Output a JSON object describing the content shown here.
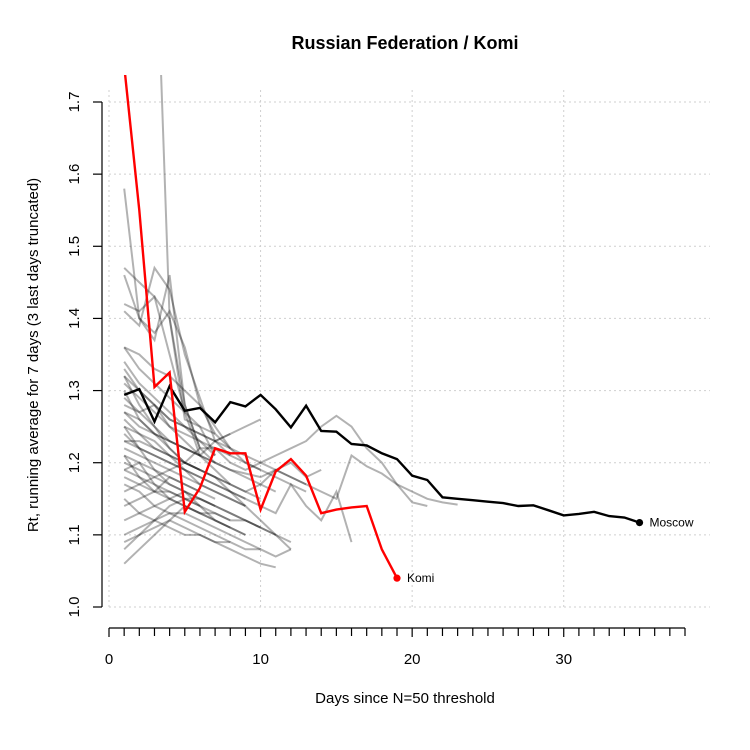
{
  "chart_data": {
    "type": "line",
    "title": "Russian Federation / Komi",
    "xlabel": "Days since N=50 threshold",
    "ylabel": "Rt, running average for 7 days (3 last days truncated)",
    "xlim": [
      0,
      38
    ],
    "ylim": [
      1.0,
      1.7
    ],
    "x_ticks": [
      "0",
      "10",
      "20",
      "30"
    ],
    "y_ticks": [
      "1.0",
      "1.1",
      "1.2",
      "1.3",
      "1.4",
      "1.5",
      "1.6",
      "1.7"
    ],
    "grid": true,
    "colors": {
      "highlight": "#ff0000",
      "reference": "#000000",
      "background": "#808080"
    },
    "highlight": {
      "name": "Komi",
      "x": [
        1,
        2,
        3,
        4,
        5,
        6,
        7,
        8,
        9,
        10,
        11,
        12,
        13,
        14,
        15,
        16,
        17,
        18,
        19
      ],
      "y": [
        1.75,
        1.55,
        1.305,
        1.325,
        1.132,
        1.165,
        1.22,
        1.213,
        1.213,
        1.135,
        1.188,
        1.205,
        1.182,
        1.13,
        1.135,
        1.138,
        1.14,
        1.08,
        1.04
      ]
    },
    "reference": {
      "name": "Moscow",
      "x": [
        1,
        2,
        3,
        4,
        5,
        6,
        7,
        8,
        9,
        10,
        11,
        12,
        13,
        14,
        15,
        16,
        17,
        18,
        19,
        20,
        21,
        22,
        23,
        24,
        25,
        26,
        27,
        28,
        29,
        30,
        31,
        32,
        33,
        34,
        35
      ],
      "y": [
        1.294,
        1.302,
        1.257,
        1.306,
        1.272,
        1.276,
        1.256,
        1.284,
        1.278,
        1.294,
        1.274,
        1.249,
        1.279,
        1.244,
        1.243,
        1.226,
        1.224,
        1.213,
        1.205,
        1.182,
        1.176,
        1.152,
        1.15,
        1.148,
        1.146,
        1.144,
        1.14,
        1.141,
        1.134,
        1.127,
        1.129,
        1.132,
        1.126,
        1.124,
        1.117
      ]
    },
    "series": [
      {
        "x": [
          1,
          2,
          3,
          4,
          5,
          6,
          7,
          8,
          9,
          10,
          11,
          12,
          13,
          14,
          15,
          16,
          17,
          18,
          19,
          20,
          21
        ],
        "y": [
          1.29,
          1.27,
          1.28,
          1.25,
          1.24,
          1.23,
          1.22,
          1.2,
          1.19,
          1.2,
          1.21,
          1.22,
          1.23,
          1.25,
          1.265,
          1.25,
          1.22,
          1.2,
          1.17,
          1.145,
          1.14
        ]
      },
      {
        "x": [
          1,
          2,
          3,
          4,
          5,
          6,
          7,
          8,
          9,
          10,
          11,
          12,
          13,
          14,
          15,
          16,
          17,
          18,
          19,
          20,
          21,
          22,
          23
        ],
        "y": [
          1.27,
          1.25,
          1.24,
          1.23,
          1.22,
          1.21,
          1.2,
          1.19,
          1.185,
          1.18,
          1.19,
          1.18,
          1.17,
          1.16,
          1.15,
          1.21,
          1.195,
          1.185,
          1.17,
          1.16,
          1.15,
          1.145,
          1.142
        ]
      },
      {
        "x": [
          1,
          2,
          3,
          4,
          5,
          6,
          7,
          8,
          9,
          10,
          11,
          12,
          13,
          14,
          15,
          16
        ],
        "y": [
          1.23,
          1.22,
          1.21,
          1.2,
          1.19,
          1.18,
          1.17,
          1.16,
          1.15,
          1.14,
          1.13,
          1.17,
          1.14,
          1.12,
          1.16,
          1.09
        ]
      },
      {
        "x": [
          1,
          2,
          3,
          4,
          5,
          6,
          7,
          8,
          9,
          10
        ],
        "y": [
          1.58,
          1.4,
          1.38,
          1.41,
          1.36,
          1.28,
          1.25,
          1.22,
          1.2,
          1.19
        ]
      },
      {
        "x": [
          1,
          2,
          3,
          4,
          5,
          6,
          7
        ],
        "y": [
          1.47,
          1.45,
          1.43,
          1.4,
          1.26,
          1.25,
          1.21
        ]
      },
      {
        "x": [
          1,
          2,
          3,
          4,
          5,
          6
        ],
        "y": [
          1.42,
          1.41,
          1.43,
          1.35,
          1.27,
          1.21
        ]
      },
      {
        "x": [
          1,
          2,
          3,
          4,
          5,
          6,
          7,
          8
        ],
        "y": [
          1.41,
          1.39,
          1.47,
          1.44,
          1.35,
          1.29,
          1.23,
          1.21
        ]
      },
      {
        "x": [
          1,
          2,
          3,
          4,
          5,
          6,
          7
        ],
        "y": [
          1.46,
          1.4,
          1.37,
          1.46,
          1.28,
          1.22,
          1.2
        ]
      },
      {
        "x": [
          3,
          4,
          5,
          6
        ],
        "y": [
          2.0,
          1.4,
          1.28,
          1.22
        ]
      },
      {
        "x": [
          1,
          2,
          3,
          4,
          5,
          6,
          7,
          8
        ],
        "y": [
          1.36,
          1.35,
          1.33,
          1.32,
          1.3,
          1.28,
          1.24,
          1.22
        ]
      },
      {
        "x": [
          1,
          2,
          3,
          4,
          5,
          6,
          7,
          8,
          9,
          10
        ],
        "y": [
          1.27,
          1.26,
          1.24,
          1.23,
          1.22,
          1.21,
          1.23,
          1.24,
          1.25,
          1.26
        ]
      },
      {
        "x": [
          1,
          2,
          3,
          4,
          5,
          6,
          7,
          8
        ],
        "y": [
          1.33,
          1.3,
          1.28,
          1.26,
          1.25,
          1.24,
          1.23,
          1.24
        ]
      },
      {
        "x": [
          1,
          2,
          3,
          4,
          5,
          6,
          7,
          8,
          9,
          10,
          11,
          12
        ],
        "y": [
          1.32,
          1.28,
          1.25,
          1.22,
          1.2,
          1.19,
          1.18,
          1.16,
          1.14,
          1.12,
          1.1,
          1.08
        ]
      },
      {
        "x": [
          1,
          2,
          3,
          4,
          5,
          6,
          7,
          8,
          9,
          10,
          11,
          12,
          13,
          14
        ],
        "y": [
          1.3,
          1.26,
          1.24,
          1.22,
          1.2,
          1.19,
          1.18,
          1.17,
          1.16,
          1.17,
          1.19,
          1.2,
          1.18,
          1.19
        ]
      },
      {
        "x": [
          1,
          2,
          3,
          4,
          5,
          6,
          7
        ],
        "y": [
          1.21,
          1.2,
          1.19,
          1.18,
          1.17,
          1.16,
          1.15
        ]
      },
      {
        "x": [
          1,
          2,
          3,
          4,
          5,
          6,
          7,
          8,
          9
        ],
        "y": [
          1.06,
          1.08,
          1.1,
          1.12,
          1.14,
          1.13,
          1.12,
          1.11,
          1.1
        ]
      },
      {
        "x": [
          1,
          2,
          3,
          4,
          5,
          6,
          7,
          8,
          9,
          10,
          11
        ],
        "y": [
          1.09,
          1.1,
          1.11,
          1.12,
          1.11,
          1.1,
          1.09,
          1.08,
          1.07,
          1.06,
          1.055
        ]
      },
      {
        "x": [
          1,
          2,
          3,
          4,
          5,
          6,
          7,
          8,
          9,
          10,
          11,
          12
        ],
        "y": [
          1.15,
          1.13,
          1.12,
          1.11,
          1.1,
          1.1,
          1.09,
          1.09,
          1.08,
          1.08,
          1.07,
          1.08
        ]
      },
      {
        "x": [
          1,
          2,
          3,
          4,
          5,
          6
        ],
        "y": [
          1.25,
          1.22,
          1.19,
          1.17,
          1.16,
          1.14
        ]
      },
      {
        "x": [
          1,
          2,
          3,
          4,
          5,
          6,
          7,
          8
        ],
        "y": [
          1.17,
          1.16,
          1.14,
          1.13,
          1.12,
          1.11,
          1.1,
          1.09
        ]
      },
      {
        "x": [
          1,
          2,
          3,
          4,
          5,
          6,
          7,
          8,
          9
        ],
        "y": [
          1.19,
          1.2,
          1.17,
          1.15,
          1.14,
          1.13,
          1.12,
          1.11,
          1.1
        ]
      },
      {
        "x": [
          1,
          2,
          3,
          4,
          5,
          6,
          7,
          8,
          9,
          10,
          11
        ],
        "y": [
          1.21,
          1.18,
          1.16,
          1.15,
          1.14,
          1.13,
          1.13,
          1.12,
          1.12,
          1.11,
          1.1
        ]
      },
      {
        "x": [
          1,
          2,
          3,
          4,
          5,
          6,
          7,
          8
        ],
        "y": [
          1.31,
          1.29,
          1.27,
          1.25,
          1.23,
          1.21,
          1.19,
          1.17
        ]
      },
      {
        "x": [
          1,
          2,
          3,
          4,
          5,
          6,
          7,
          8,
          9
        ],
        "y": [
          1.24,
          1.22,
          1.21,
          1.2,
          1.19,
          1.17,
          1.16,
          1.15,
          1.14
        ]
      },
      {
        "x": [
          1,
          2,
          3,
          4,
          5,
          6,
          7,
          8,
          9,
          10
        ],
        "y": [
          1.23,
          1.23,
          1.22,
          1.21,
          1.2,
          1.19,
          1.18,
          1.17,
          1.16,
          1.15
        ]
      },
      {
        "x": [
          1,
          2,
          3,
          4,
          5,
          6,
          7,
          8,
          9,
          10,
          11,
          12,
          13
        ],
        "y": [
          1.16,
          1.17,
          1.18,
          1.19,
          1.2,
          1.22,
          1.22,
          1.21,
          1.2,
          1.19,
          1.18,
          1.17,
          1.16
        ]
      },
      {
        "x": [
          1,
          2,
          3,
          4,
          5,
          6,
          7
        ],
        "y": [
          1.18,
          1.17,
          1.16,
          1.16,
          1.15,
          1.15,
          1.14
        ]
      },
      {
        "x": [
          1,
          2,
          3,
          4,
          5,
          6
        ],
        "y": [
          1.25,
          1.24,
          1.23,
          1.21,
          1.2,
          1.19
        ]
      },
      {
        "x": [
          1,
          2,
          3,
          4,
          5,
          6,
          7,
          8,
          9
        ],
        "y": [
          1.22,
          1.21,
          1.2,
          1.19,
          1.18,
          1.17,
          1.16,
          1.15,
          1.14
        ]
      },
      {
        "x": [
          1,
          2,
          3,
          4,
          5,
          6,
          7,
          8,
          9,
          10,
          11,
          12,
          13
        ],
        "y": [
          1.32,
          1.3,
          1.28,
          1.26,
          1.25,
          1.24,
          1.23,
          1.22,
          1.21,
          1.2,
          1.19,
          1.18,
          1.17
        ]
      },
      {
        "x": [
          1,
          2,
          3,
          4,
          5,
          6,
          7
        ],
        "y": [
          1.36,
          1.33,
          1.31,
          1.29,
          1.27,
          1.25,
          1.24
        ]
      },
      {
        "x": [
          1,
          2,
          3,
          4,
          5,
          6,
          7,
          8,
          9,
          10
        ],
        "y": [
          1.12,
          1.13,
          1.14,
          1.15,
          1.16,
          1.15,
          1.14,
          1.13,
          1.12,
          1.11
        ]
      },
      {
        "x": [
          1,
          2,
          3,
          4,
          5,
          6,
          7,
          8,
          9,
          10,
          11
        ],
        "y": [
          1.28,
          1.27,
          1.25,
          1.23,
          1.22,
          1.21,
          1.2,
          1.19,
          1.18,
          1.17,
          1.16
        ]
      },
      {
        "x": [
          1,
          2,
          3,
          4,
          5,
          6,
          7,
          8
        ],
        "y": [
          1.08,
          1.1,
          1.12,
          1.14,
          1.15,
          1.14,
          1.12,
          1.11
        ]
      },
      {
        "x": [
          1,
          2,
          3,
          4,
          5,
          6,
          7,
          8,
          9,
          10,
          11,
          12
        ],
        "y": [
          1.2,
          1.19,
          1.18,
          1.17,
          1.16,
          1.15,
          1.14,
          1.13,
          1.12,
          1.11,
          1.1,
          1.09
        ]
      },
      {
        "x": [
          1,
          2,
          3,
          4,
          5,
          6
        ],
        "y": [
          1.14,
          1.15,
          1.16,
          1.18,
          1.17,
          1.16
        ]
      },
      {
        "x": [
          1,
          2,
          3,
          4,
          5,
          6,
          7,
          8,
          9
        ],
        "y": [
          1.26,
          1.24,
          1.22,
          1.21,
          1.19,
          1.18,
          1.17,
          1.16,
          1.15
        ]
      },
      {
        "x": [
          1,
          2,
          3,
          4,
          5,
          6,
          7
        ],
        "y": [
          1.34,
          1.31,
          1.29,
          1.27,
          1.25,
          1.23,
          1.21
        ]
      },
      {
        "x": [
          1,
          2,
          3,
          4,
          5,
          6,
          7,
          8,
          9,
          10
        ],
        "y": [
          1.1,
          1.11,
          1.12,
          1.13,
          1.13,
          1.12,
          1.11,
          1.1,
          1.09,
          1.08
        ]
      },
      {
        "x": [
          1,
          2,
          3,
          4,
          5,
          6,
          7,
          8
        ],
        "y": [
          1.19,
          1.18,
          1.17,
          1.16,
          1.15,
          1.14,
          1.13,
          1.12
        ]
      }
    ]
  }
}
